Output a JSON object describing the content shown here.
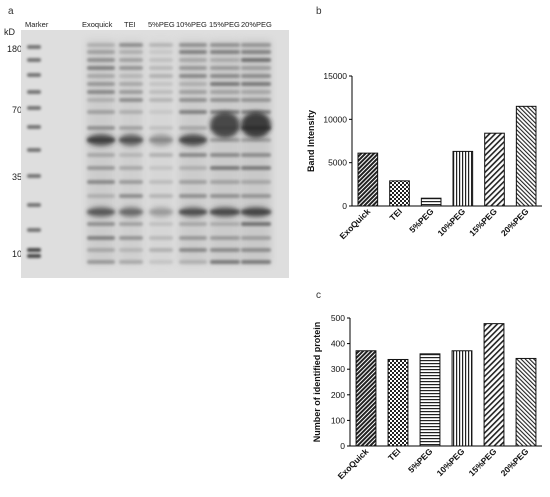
{
  "panel_a": {
    "letter": "a",
    "unit_label": "kD",
    "lane_labels": [
      "Marker",
      "Exoquick",
      "TEI",
      "5%PEG",
      "10%PEG",
      "15%PEG",
      "20%PEG"
    ],
    "marker_kd": [
      "180",
      "70",
      "35",
      "10"
    ]
  },
  "panel_b": {
    "letter": "b",
    "chart_data": {
      "type": "bar",
      "categories": [
        "ExoQuick",
        "TEI",
        "5%PEG",
        "10%PEG",
        "15%PEG",
        "20%PEG"
      ],
      "values": [
        6100,
        2900,
        900,
        6300,
        8400,
        11500
      ],
      "ylabel": "Band Intensity",
      "ylim": [
        0,
        15000
      ],
      "yticks": [
        "0",
        "5000",
        "10000",
        "15000"
      ],
      "patterns": [
        "dense-diagonal",
        "checker",
        "horizontal",
        "vertical",
        "diagonal",
        "diagonal-fine"
      ]
    }
  },
  "panel_c": {
    "letter": "c",
    "chart_data": {
      "type": "bar",
      "categories": [
        "ExoQuick",
        "TEI",
        "5%PEG",
        "10%PEG",
        "15%PEG",
        "20%PEG"
      ],
      "values": [
        372,
        338,
        360,
        372,
        478,
        342
      ],
      "ylabel": "Number of identified protein",
      "ylim": [
        0,
        500
      ],
      "yticks": [
        "0",
        "100",
        "200",
        "300",
        "400",
        "500"
      ],
      "patterns": [
        "dense-diagonal",
        "checker",
        "horizontal",
        "vertical",
        "diagonal",
        "diagonal-fine"
      ]
    }
  }
}
